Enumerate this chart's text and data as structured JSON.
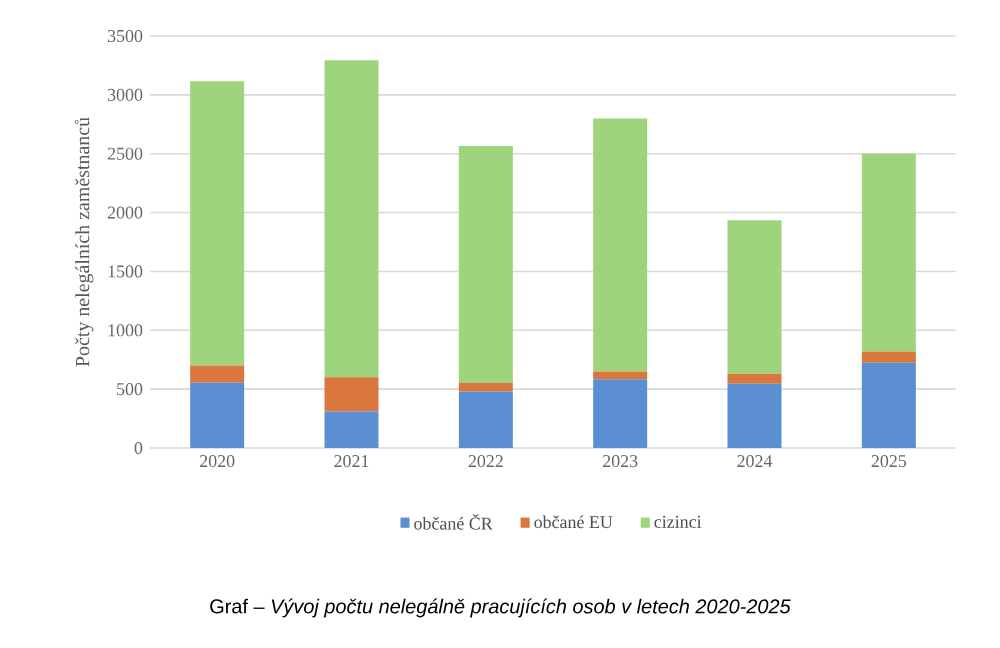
{
  "chart_data": {
    "type": "bar",
    "stacked": true,
    "categories": [
      "2020",
      "2021",
      "2022",
      "2023",
      "2024",
      "2025"
    ],
    "series": [
      {
        "name": "občané ČR",
        "color": "#5b8fd1",
        "values": [
          555,
          310,
          480,
          585,
          545,
          725
        ]
      },
      {
        "name": "občané EU",
        "color": "#d9773d",
        "values": [
          145,
          290,
          75,
          65,
          85,
          95
        ]
      },
      {
        "name": "cizinci",
        "color": "#9dd47c",
        "values": [
          2415,
          2695,
          2010,
          2150,
          1305,
          1680
        ]
      }
    ],
    "ylabel": "Počty nelegálních zaměstnanců",
    "ylim": [
      0,
      3500
    ],
    "yticks": [
      0,
      500,
      1000,
      1500,
      2000,
      2500,
      3000,
      3500
    ],
    "grid": "y",
    "legend": "bottom",
    "annotations": [
      "Graf – *Vývoj počtu nelegálně pracujících osob v letech 2020-2025*"
    ]
  }
}
